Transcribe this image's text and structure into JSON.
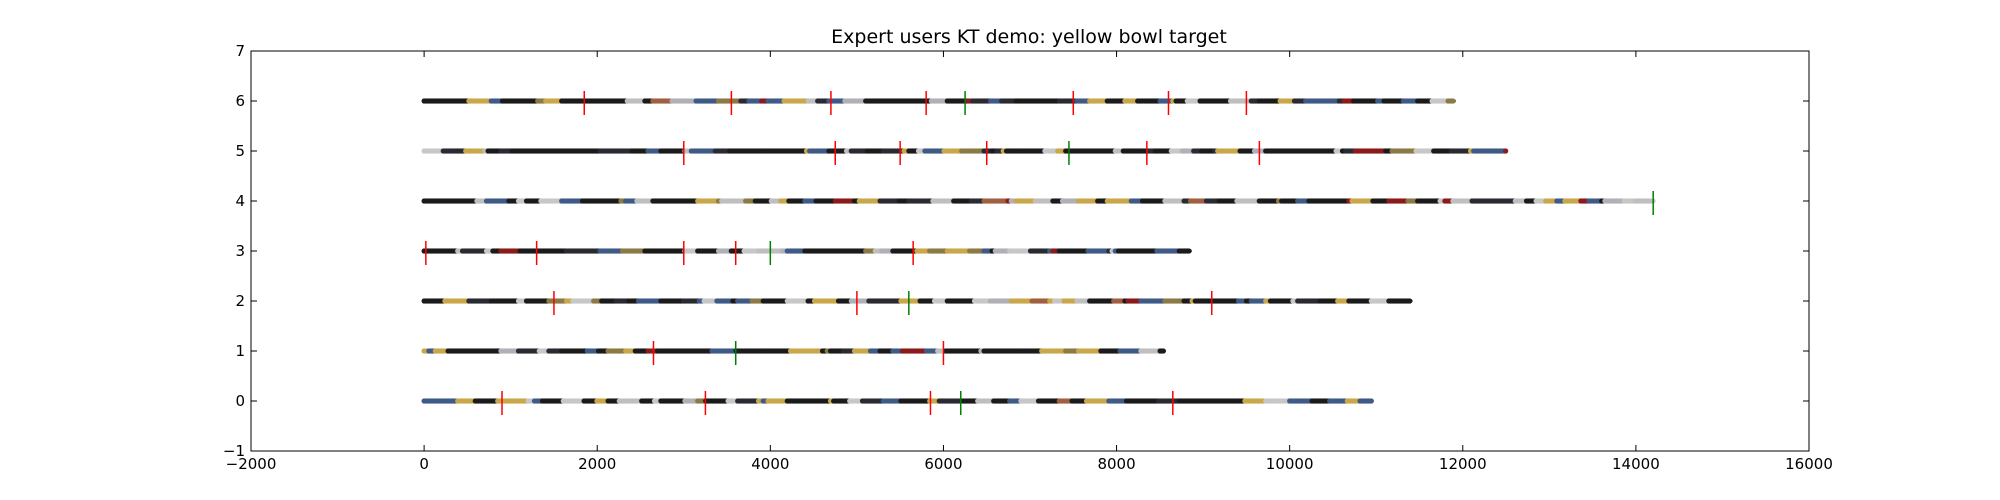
{
  "chart_data": {
    "type": "scatter",
    "title": "Expert users KT demo: yellow bowl target",
    "xlabel": "",
    "ylabel": "",
    "xlim": [
      -2000,
      16000
    ],
    "ylim": [
      -1,
      7
    ],
    "xticks": [
      -2000,
      0,
      2000,
      4000,
      6000,
      8000,
      10000,
      12000,
      14000,
      16000
    ],
    "yticks": [
      -1,
      0,
      1,
      2,
      3,
      4,
      5,
      6,
      7
    ],
    "grid": false,
    "legend": "none",
    "series": [
      {
        "y": 0,
        "x_start": 0,
        "x_end": 10950
      },
      {
        "y": 1,
        "x_start": 0,
        "x_end": 8550
      },
      {
        "y": 2,
        "x_start": 0,
        "x_end": 11400
      },
      {
        "y": 3,
        "x_start": 0,
        "x_end": 8850
      },
      {
        "y": 4,
        "x_start": 0,
        "x_end": 14200
      },
      {
        "y": 5,
        "x_start": 0,
        "x_end": 12500
      },
      {
        "y": 6,
        "x_start": 0,
        "x_end": 11900
      }
    ],
    "red_markers": [
      {
        "y": 0,
        "x": [
          900,
          3250,
          5850,
          8650
        ]
      },
      {
        "y": 1,
        "x": [
          2650,
          6000
        ]
      },
      {
        "y": 2,
        "x": [
          1500,
          5000,
          9100
        ]
      },
      {
        "y": 3,
        "x": [
          20,
          1300,
          3000,
          3600,
          5650
        ]
      },
      {
        "y": 4,
        "x": []
      },
      {
        "y": 5,
        "x": [
          3000,
          4750,
          5500,
          6500,
          8350,
          9650
        ]
      },
      {
        "y": 6,
        "x": [
          1850,
          3550,
          4700,
          5800,
          7500,
          8600,
          9500
        ]
      }
    ],
    "green_markers": [
      {
        "y": 0,
        "x": [
          6200
        ]
      },
      {
        "y": 1,
        "x": [
          3600
        ]
      },
      {
        "y": 2,
        "x": [
          5600
        ]
      },
      {
        "y": 3,
        "x": [
          4000
        ]
      },
      {
        "y": 4,
        "x": [
          14200
        ]
      },
      {
        "y": 5,
        "x": [
          7450
        ]
      },
      {
        "y": 6,
        "x": [
          6250
        ]
      }
    ],
    "colors": {
      "red_marker": "#ff0000",
      "green_marker": "#008000",
      "dots": [
        "#1b1b1b",
        "#2a2a33",
        "#3f5a86",
        "#c9a74a",
        "#8b7a45",
        "#c7c7c7",
        "#bfbfbf",
        "#8b1a1a",
        "#b0b0b8",
        "#a06040"
      ]
    }
  }
}
